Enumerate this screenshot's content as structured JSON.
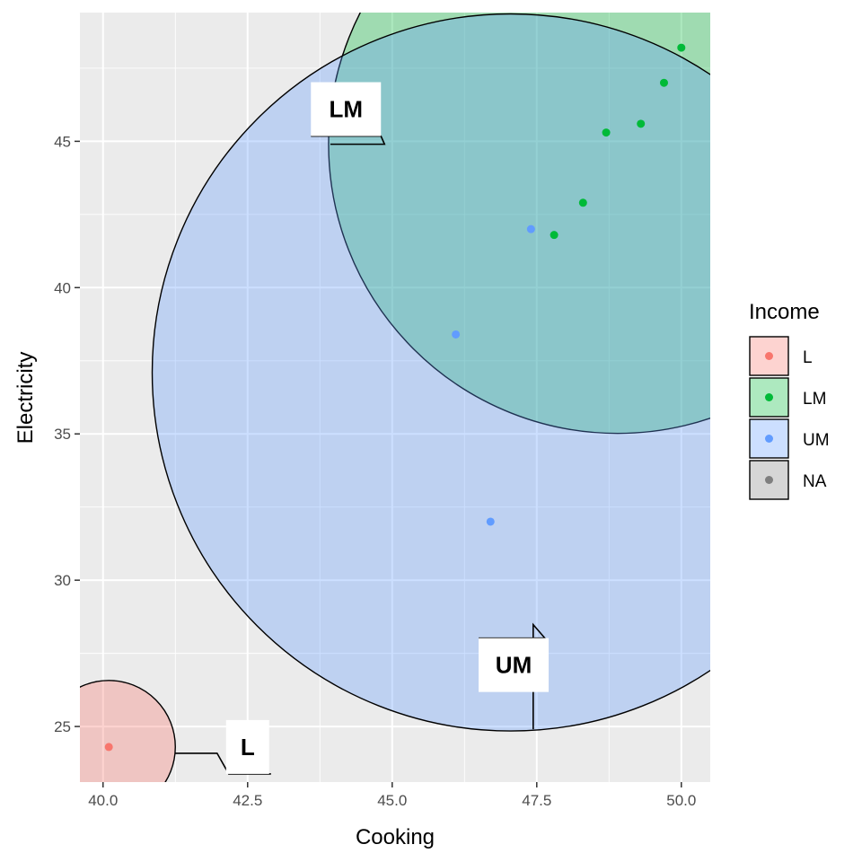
{
  "chart_data": {
    "type": "scatter",
    "title": "",
    "xlabel": "Cooking",
    "ylabel": "Electricity",
    "xlim": [
      39.6,
      50.5
    ],
    "ylim": [
      23.1,
      49.4
    ],
    "xticks": [
      40.0,
      42.5,
      45.0,
      47.5,
      50.0
    ],
    "xtick_labels": [
      "40.0",
      "42.5",
      "45.0",
      "47.5",
      "50.0"
    ],
    "yticks": [
      25,
      30,
      35,
      40,
      45
    ],
    "ytick_labels": [
      "25",
      "30",
      "35",
      "40",
      "45"
    ],
    "grid": true,
    "series": [
      {
        "name": "L",
        "color": "#F8766D",
        "fill": "#F4C7C3",
        "points": [
          [
            40.1,
            24.3
          ]
        ],
        "circle": {
          "cx": 40.1,
          "cy": 24.3,
          "r": 1.15
        },
        "label": {
          "text": "L",
          "x": 42.5,
          "y": 24.3
        }
      },
      {
        "name": "LM",
        "color": "#00BA38",
        "fill": "#A8DDB5",
        "points": [
          [
            47.8,
            41.8
          ],
          [
            48.3,
            42.9
          ],
          [
            48.7,
            45.3
          ],
          [
            49.3,
            45.6
          ],
          [
            49.7,
            47.0
          ],
          [
            50.0,
            48.2
          ]
        ],
        "circle": {
          "cx": 48.9,
          "cy": 44.9,
          "r": 5.0
        },
        "label": {
          "text": "LM",
          "x": 44.2,
          "y": 46.1
        }
      },
      {
        "name": "UM",
        "color": "#619CFF",
        "fill": "#C5D4F0",
        "points": [
          [
            47.4,
            42.0
          ],
          [
            46.1,
            38.4
          ],
          [
            46.7,
            32.0
          ]
        ],
        "circle": {
          "cx": 47.05,
          "cy": 37.1,
          "r": 6.2
        },
        "label": {
          "text": "UM",
          "x": 47.1,
          "y": 27.1
        }
      }
    ],
    "legend": {
      "title": "Income",
      "placement": "right",
      "entries": [
        {
          "label": "L",
          "color": "#F8766D",
          "fill": "#F4C7C3"
        },
        {
          "label": "LM",
          "color": "#00BA38",
          "fill": "#A8DDB5"
        },
        {
          "label": "UM",
          "color": "#619CFF",
          "fill": "#C5D4F0"
        },
        {
          "label": "NA",
          "color": "#7F7F7F",
          "fill": "#CCCCCC"
        }
      ]
    }
  }
}
